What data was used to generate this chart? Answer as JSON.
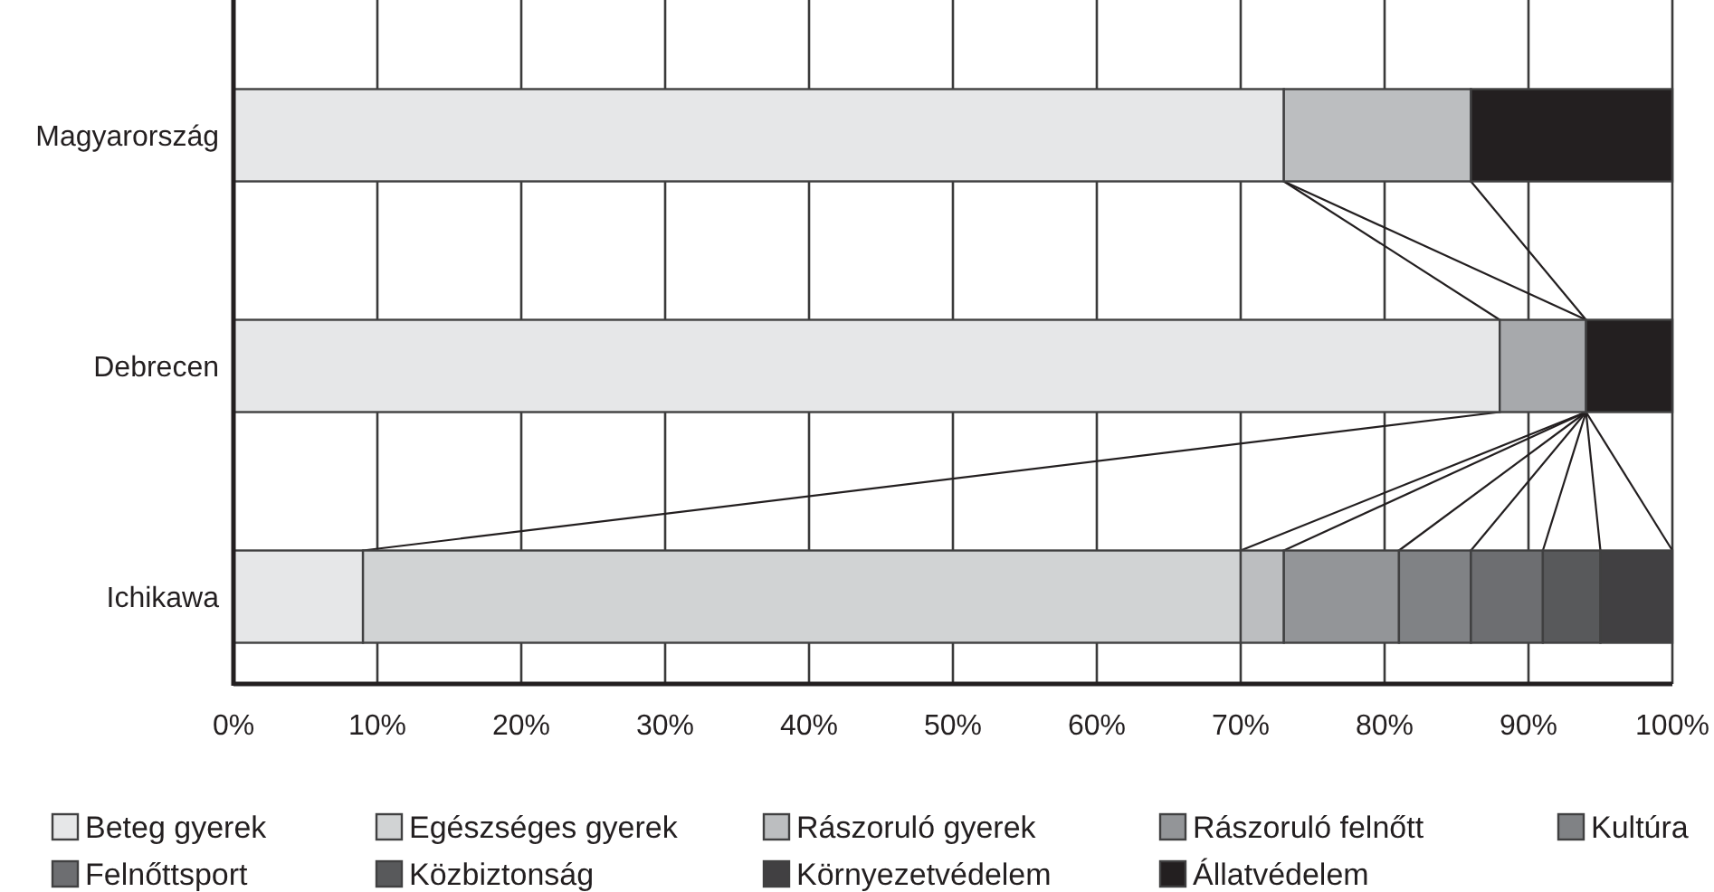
{
  "chart_data": {
    "type": "bar",
    "orientation": "horizontal",
    "stacked": true,
    "categories": [
      "Magyarország",
      "Debrecen",
      "Ichikawa"
    ],
    "xlim": [
      0,
      100
    ],
    "xticks": [
      {
        "value": 0,
        "label": "0%"
      },
      {
        "value": 10,
        "label": "10%"
      },
      {
        "value": 20,
        "label": "20%"
      },
      {
        "value": 30,
        "label": "30%"
      },
      {
        "value": 40,
        "label": "40%"
      },
      {
        "value": 50,
        "label": "50%"
      },
      {
        "value": 60,
        "label": "60%"
      },
      {
        "value": 70,
        "label": "70%"
      },
      {
        "value": 80,
        "label": "80%"
      },
      {
        "value": 90,
        "label": "90%"
      },
      {
        "value": 100,
        "label": "100%"
      }
    ],
    "grid": "x",
    "legend": "bottom",
    "series": [
      {
        "name": "Beteg gyerek",
        "color": "#e6e7e8",
        "values": [
          73,
          88,
          9
        ]
      },
      {
        "name": "Egészséges gyerek",
        "color": "#d1d3d4",
        "values": [
          null,
          null,
          61
        ]
      },
      {
        "name": "Rászoruló gyerek",
        "color": "#bcbec0",
        "colors": [
          "#bcbec0",
          "#a7a9ac",
          "#bcbec0"
        ],
        "values": [
          13,
          6,
          3
        ]
      },
      {
        "name": "Rászoruló felnőtt",
        "color": "#939598",
        "values": [
          null,
          null,
          8
        ]
      },
      {
        "name": "Kultúra",
        "color": "#808285",
        "values": [
          null,
          null,
          5
        ]
      },
      {
        "name": "Felnőttsport",
        "color": "#6d6e71",
        "values": [
          null,
          null,
          5
        ]
      },
      {
        "name": "Közbiztonság",
        "color": "#58595b",
        "values": [
          null,
          null,
          4
        ]
      },
      {
        "name": "Környezetvédelem",
        "color": "#414042",
        "values": [
          null,
          null,
          5
        ]
      },
      {
        "name": "Állatvédelem",
        "color": "#231f20",
        "values": [
          14,
          6,
          null
        ]
      }
    ]
  }
}
